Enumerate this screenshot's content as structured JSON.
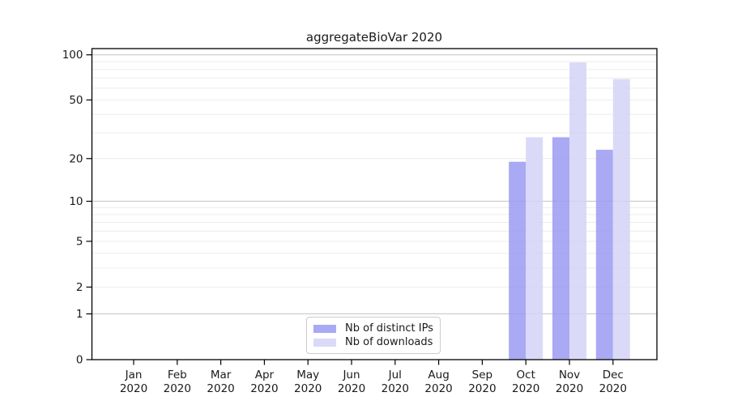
{
  "chart_data": {
    "type": "bar",
    "title": "aggregateBioVar 2020",
    "categories": [
      "Jan",
      "Feb",
      "Mar",
      "Apr",
      "May",
      "Jun",
      "Jul",
      "Aug",
      "Sep",
      "Oct",
      "Nov",
      "Dec"
    ],
    "category_year": "2020",
    "series": [
      {
        "name": "Nb of distinct IPs",
        "color": "#9a9af2",
        "values": [
          0,
          0,
          0,
          0,
          0,
          0,
          0,
          0,
          0,
          19,
          28,
          23
        ]
      },
      {
        "name": "Nb of downloads",
        "color": "#d3d3f7",
        "values": [
          0,
          0,
          0,
          0,
          0,
          0,
          0,
          0,
          0,
          28,
          89,
          69
        ]
      }
    ],
    "yscale": "log1p",
    "yticks": [
      0,
      1,
      2,
      5,
      10,
      20,
      50,
      100
    ],
    "major_gridlines": [
      1,
      10,
      100
    ],
    "minor_gridlines": [
      2,
      3,
      4,
      5,
      6,
      7,
      8,
      9,
      20,
      30,
      40,
      50,
      60,
      70,
      80,
      90
    ],
    "ylim": [
      0,
      110
    ],
    "xlabel": "",
    "ylabel": "",
    "grid": true,
    "legend_position": "lower center",
    "colors": {
      "major_grid": "#c9c9c9",
      "minor_grid": "#ececec",
      "spine": "#000000",
      "tick": "#000000",
      "bar_opacity": 0.85
    }
  }
}
